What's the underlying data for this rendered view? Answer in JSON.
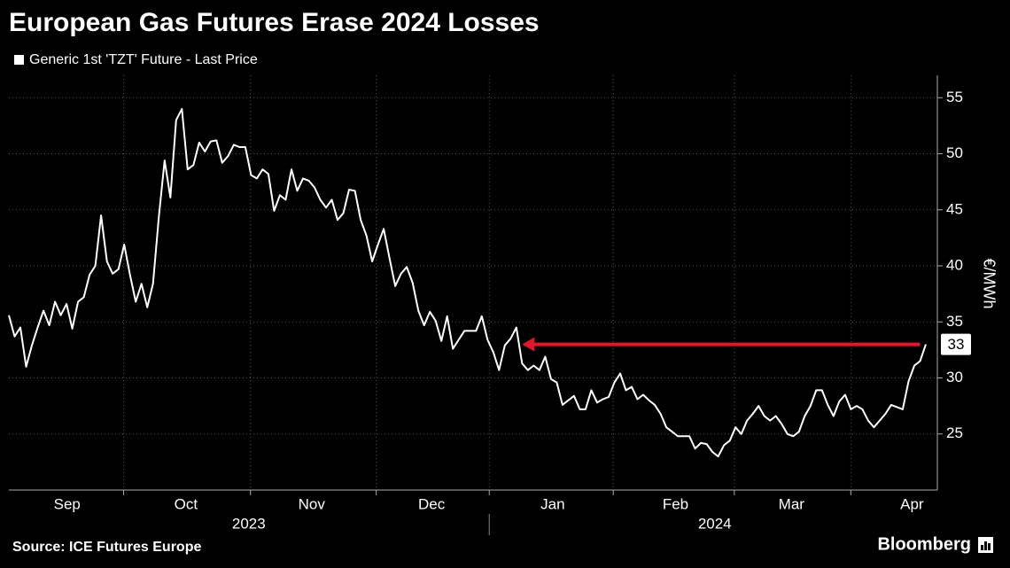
{
  "chart_data": {
    "type": "line",
    "title": "European Gas Futures Erase 2024 Losses",
    "y_label": "€/MWh",
    "source": "Source: ICE Futures Europe",
    "brand": "Bloomberg",
    "series": [
      {
        "name": "Generic 1st 'TZT' Future - Last Price",
        "color": "#ffffff",
        "values": [
          35.6,
          33.7,
          34.5,
          31,
          32.9,
          34.5,
          36,
          34.7,
          36.8,
          35.6,
          36.6,
          34.4,
          36.8,
          37.2,
          39.2,
          40,
          44.5,
          40.4,
          39.3,
          39.7,
          41.9,
          39.2,
          36.8,
          38.4,
          36.3,
          38.4,
          44.3,
          49.4,
          46.1,
          53,
          54,
          48.6,
          49,
          51,
          50.2,
          51.1,
          51.2,
          49.2,
          49.8,
          50.8,
          50.6,
          50.6,
          48.1,
          47.8,
          48.6,
          48.2,
          44.9,
          46.3,
          45.9,
          48.6,
          46.7,
          47.8,
          47.6,
          47,
          45.9,
          45.2,
          45.9,
          44.1,
          44.7,
          46.8,
          46.7,
          44.1,
          42.7,
          40.4,
          41.9,
          43.3,
          40.7,
          38.2,
          39.3,
          39.9,
          38.5,
          36,
          34.7,
          35.9,
          35.1,
          33.3,
          35.5,
          32.6,
          33.4,
          34.2,
          34.2,
          34.2,
          35.5,
          33.4,
          32.3,
          30.7,
          32.9,
          33.5,
          34.5,
          31.3,
          30.7,
          31.1,
          30.7,
          31.9,
          29.9,
          29.6,
          27.6,
          28,
          28.4,
          27.2,
          27.2,
          28.9,
          27.8,
          28.1,
          28.3,
          29.6,
          30.4,
          28.9,
          29.2,
          28.1,
          28.5,
          28,
          27.6,
          26.8,
          25.6,
          25.2,
          24.8,
          24.8,
          24.8,
          23.7,
          24.2,
          24.1,
          23.4,
          23,
          24,
          24.4,
          25.6,
          25,
          26.2,
          26.8,
          27.5,
          26.6,
          26.2,
          26.6,
          25.9,
          25,
          24.8,
          25.2,
          26.6,
          27.5,
          28.9,
          28.9,
          27.6,
          26.6,
          27.9,
          28.5,
          27.2,
          27.5,
          27.2,
          26.2,
          25.6,
          26.2,
          26.8,
          27.6,
          27.4,
          27.2,
          29.7,
          31.1,
          31.5,
          33
        ]
      }
    ],
    "xlim": [
      0,
      161
    ],
    "ylim": [
      20,
      57
    ],
    "yticks": [
      25,
      30,
      35,
      40,
      45,
      50,
      55
    ],
    "xticks": [
      {
        "value": 10.1,
        "label": "Sep"
      },
      {
        "value": 30.7,
        "label": "Oct"
      },
      {
        "value": 52.5,
        "label": "Nov"
      },
      {
        "value": 73.3,
        "label": "Dec"
      },
      {
        "value": 94.3,
        "label": "Jan"
      },
      {
        "value": 115.6,
        "label": "Feb"
      },
      {
        "value": 135.7,
        "label": "Mar"
      },
      {
        "value": 156.6,
        "label": "Apr"
      }
    ],
    "xgrid": [
      19.9,
      41.9,
      63.7,
      83.3,
      104.8,
      125.8,
      146
    ],
    "year_labels": [
      {
        "value": 41.6,
        "label": "2023"
      },
      {
        "value": 122.4,
        "label": "2024"
      }
    ],
    "year_divider": 83.3,
    "grid": true,
    "arrow": {
      "from": 158,
      "to": 89,
      "value": 33,
      "color": "#e0182d"
    }
  }
}
